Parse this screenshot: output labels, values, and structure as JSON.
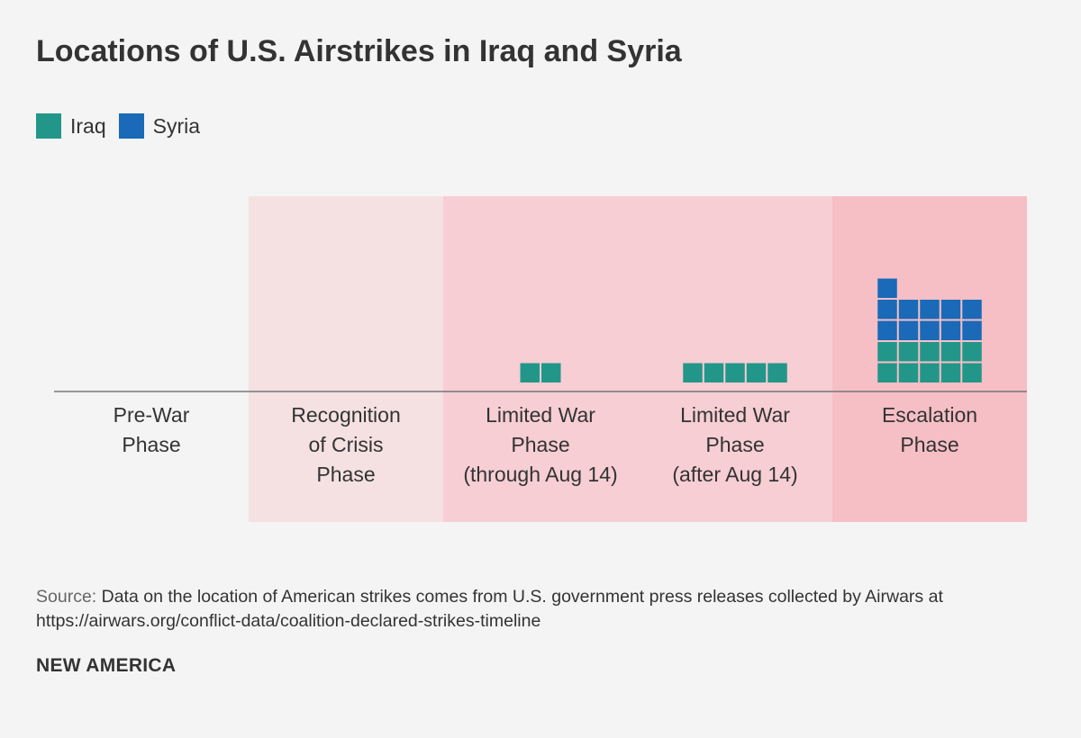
{
  "title": "Locations of U.S. Airstrikes in Iraq and Syria",
  "legend": {
    "items": [
      {
        "label": "Iraq",
        "color": "#23968a"
      },
      {
        "label": "Syria",
        "color": "#1a6ab7"
      }
    ]
  },
  "chart_data": {
    "type": "unit-stacked-bar",
    "title": "Locations of U.S. Airstrikes in Iraq and Syria",
    "categories": [
      [
        "Pre-War",
        "Phase"
      ],
      [
        "Recognition",
        "of Crisis",
        "Phase"
      ],
      [
        "Limited War",
        "Phase",
        "(through Aug 14)"
      ],
      [
        "Limited War",
        "Phase",
        "(after Aug 14)"
      ],
      [
        "Escalation",
        "Phase"
      ]
    ],
    "phase_shading": [
      "none",
      "#f5e1e2",
      "#f6ced3",
      "#f6ced3",
      "#f6bfc5"
    ],
    "series": [
      {
        "name": "Iraq",
        "color": "#23968a",
        "values": [
          0,
          0,
          2,
          5,
          10
        ]
      },
      {
        "name": "Syria",
        "color": "#1a6ab7",
        "values": [
          0,
          0,
          0,
          0,
          11
        ]
      }
    ],
    "units_per_row": 5
  },
  "source": {
    "label": "Source:",
    "text": " Data on the location of American strikes comes from U.S. government press releases collected by Airwars at https://airwars.org/conflict-data/coalition-declared-strikes-timeline"
  },
  "brand": "NEW AMERICA"
}
